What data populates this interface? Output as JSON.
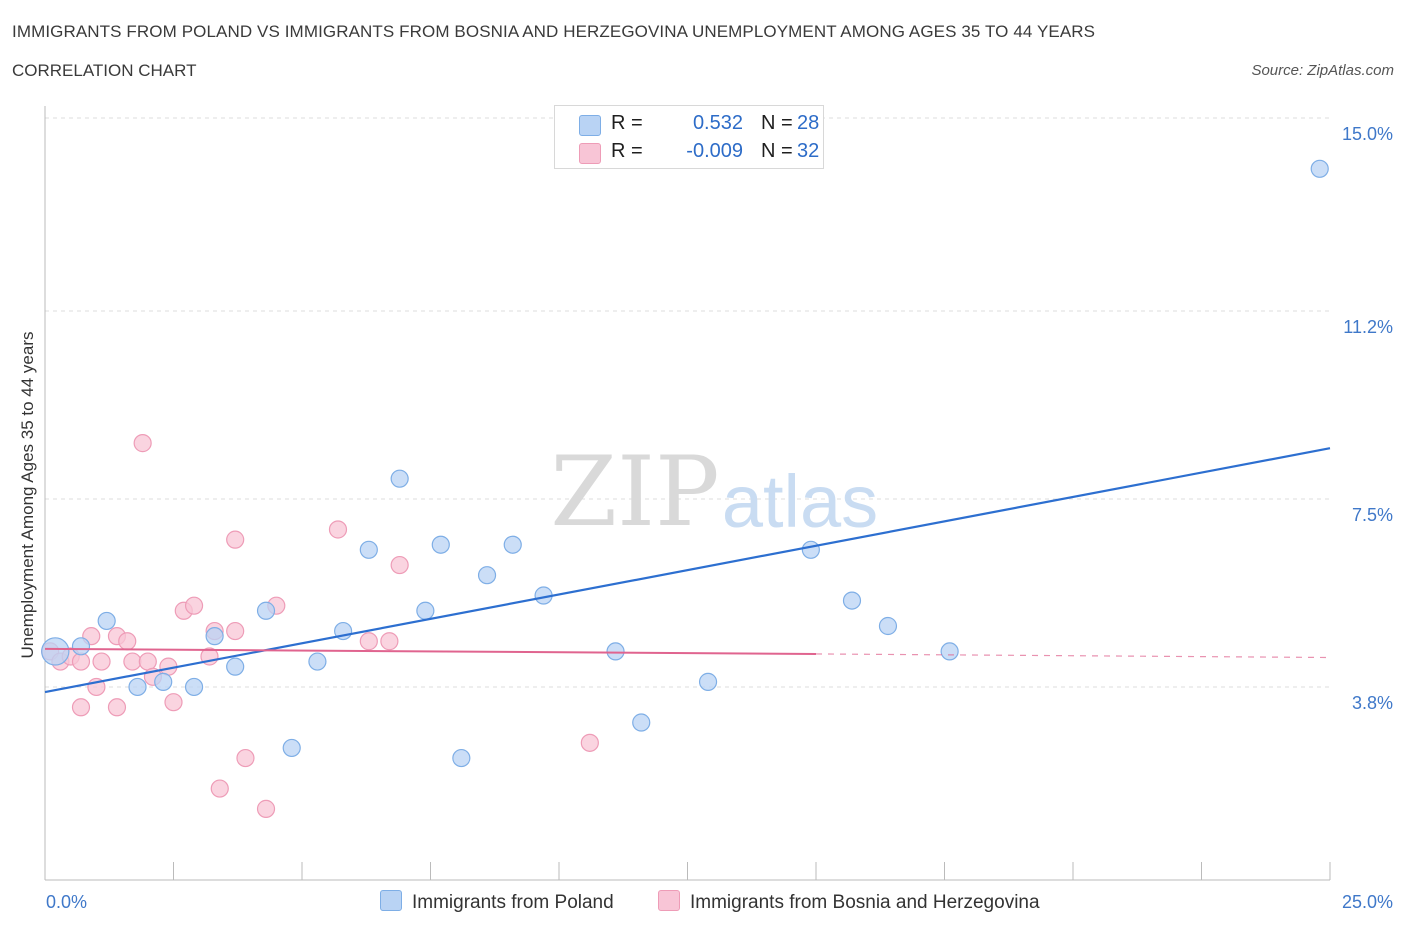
{
  "title": "IMMIGRANTS FROM POLAND VS IMMIGRANTS FROM BOSNIA AND HERZEGOVINA UNEMPLOYMENT AMONG AGES 35 TO 44 YEARS",
  "subtitle": "CORRELATION CHART",
  "source": "Source: ZipAtlas.com",
  "watermark": {
    "zip": "ZIP",
    "atlas": "atlas"
  },
  "legend_top": [
    {
      "r_label": "R =",
      "r_value": "0.532",
      "n_label": "N =",
      "n_value": "28"
    },
    {
      "r_label": "R =",
      "r_value": "-0.009",
      "n_label": "N =",
      "n_value": "32"
    }
  ],
  "colors": {
    "poland_fill": "#b9d3f4",
    "poland_stroke": "#7eaee6",
    "poland_line": "#2d6fd0",
    "bosnia_fill": "#f8c5d6",
    "bosnia_stroke": "#ee9cb7",
    "bosnia_line": "#e0648f",
    "tick_label": "#3f78c9",
    "grid": "#dddddd"
  },
  "chart_data": {
    "type": "scatter",
    "title": "IMMIGRANTS FROM POLAND VS IMMIGRANTS FROM BOSNIA AND HERZEGOVINA UNEMPLOYMENT AMONG AGES 35 TO 44 YEARS",
    "subtitle": "CORRELATION CHART",
    "xlabel": "",
    "ylabel": "Unemployment Among Ages 35 to 44 years",
    "xlim": [
      0,
      25
    ],
    "ylim": [
      0,
      15
    ],
    "x_tick_labels": [
      "0.0%",
      "25.0%"
    ],
    "y_ticks": [
      3.8,
      7.5,
      11.2,
      15.0
    ],
    "y_tick_labels": [
      "3.8%",
      "7.5%",
      "11.2%",
      "15.0%"
    ],
    "grid": true,
    "legend_position": "bottom-center",
    "series": [
      {
        "name": "Immigrants from Poland",
        "r": 0.532,
        "n": 28,
        "trend": {
          "x": [
            0,
            25
          ],
          "y": [
            3.7,
            8.5
          ]
        },
        "points": [
          [
            0.2,
            4.5,
            1.6
          ],
          [
            0.7,
            4.6,
            1
          ],
          [
            1.2,
            5.1,
            1
          ],
          [
            1.8,
            3.8,
            1
          ],
          [
            2.3,
            3.9,
            1
          ],
          [
            2.9,
            3.8,
            1
          ],
          [
            3.3,
            4.8,
            1
          ],
          [
            3.7,
            4.2,
            1
          ],
          [
            4.3,
            5.3,
            1
          ],
          [
            4.8,
            2.6,
            1
          ],
          [
            5.3,
            4.3,
            1
          ],
          [
            5.8,
            4.9,
            1
          ],
          [
            6.3,
            6.5,
            1
          ],
          [
            6.9,
            7.9,
            1
          ],
          [
            7.4,
            5.3,
            1
          ],
          [
            7.7,
            6.6,
            1
          ],
          [
            8.1,
            2.4,
            1
          ],
          [
            8.6,
            6.0,
            1
          ],
          [
            9.1,
            6.6,
            1
          ],
          [
            9.7,
            5.6,
            1
          ],
          [
            11.1,
            4.5,
            1
          ],
          [
            11.6,
            3.1,
            1
          ],
          [
            12.9,
            3.9,
            1
          ],
          [
            14.9,
            6.5,
            1
          ],
          [
            15.7,
            5.5,
            1
          ],
          [
            16.4,
            5.0,
            1
          ],
          [
            17.6,
            4.5,
            1
          ],
          [
            24.8,
            14.0,
            1
          ]
        ]
      },
      {
        "name": "Immigrants from Bosnia and Herzegovina",
        "r": -0.009,
        "n": 32,
        "trend": {
          "x": [
            0,
            15
          ],
          "y": [
            4.55,
            4.45
          ]
        },
        "trend_dashed": {
          "x": [
            15,
            25
          ],
          "y": [
            4.45,
            4.38
          ]
        },
        "points": [
          [
            0.1,
            4.5,
            1
          ],
          [
            0.3,
            4.3,
            1
          ],
          [
            0.5,
            4.4,
            1
          ],
          [
            0.7,
            4.3,
            1
          ],
          [
            0.7,
            3.4,
            1
          ],
          [
            0.9,
            4.8,
            1
          ],
          [
            1.0,
            3.8,
            1
          ],
          [
            1.1,
            4.3,
            1
          ],
          [
            1.4,
            4.8,
            1
          ],
          [
            1.4,
            3.4,
            1
          ],
          [
            1.6,
            4.7,
            1
          ],
          [
            1.7,
            4.3,
            1
          ],
          [
            1.9,
            8.6,
            1
          ],
          [
            2.0,
            4.3,
            1
          ],
          [
            2.1,
            4.0,
            1
          ],
          [
            2.4,
            4.2,
            1
          ],
          [
            2.5,
            3.5,
            1
          ],
          [
            2.7,
            5.3,
            1
          ],
          [
            2.9,
            5.4,
            1
          ],
          [
            3.2,
            4.4,
            1
          ],
          [
            3.3,
            4.9,
            1
          ],
          [
            3.4,
            1.8,
            1
          ],
          [
            3.7,
            6.7,
            1
          ],
          [
            3.7,
            4.9,
            1
          ],
          [
            3.9,
            2.4,
            1
          ],
          [
            4.3,
            1.4,
            1
          ],
          [
            4.5,
            5.4,
            1
          ],
          [
            5.7,
            6.9,
            1
          ],
          [
            6.3,
            4.7,
            1
          ],
          [
            6.7,
            4.7,
            1
          ],
          [
            6.9,
            6.2,
            1
          ],
          [
            10.6,
            2.7,
            1
          ]
        ]
      }
    ]
  }
}
